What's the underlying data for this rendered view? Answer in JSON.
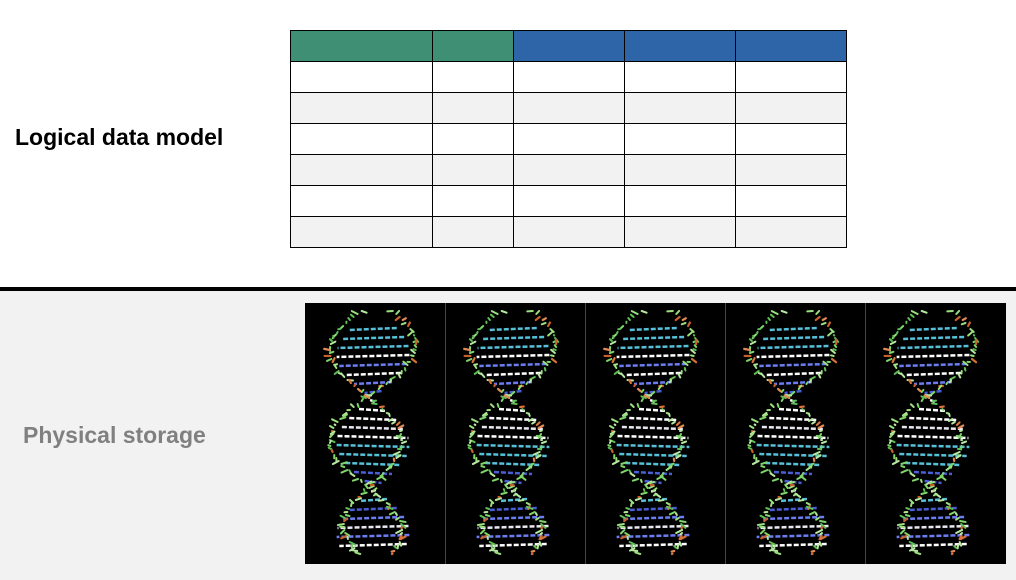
{
  "labels": {
    "logical": "Logical data model",
    "physical": "Physical storage"
  },
  "colors": {
    "header_green": "#3f8f74",
    "header_blue": "#2e64a8",
    "row_alt": "#f2f2f2",
    "row_plain": "#ffffff",
    "physical_background": "#f2f2f2",
    "storage_background": "#000000"
  },
  "table": {
    "header_colors": [
      "green",
      "green",
      "blue",
      "blue",
      "blue"
    ],
    "row_count": 6
  },
  "storage": {
    "strand_count": 5,
    "image": "dna-double-helix-image"
  }
}
